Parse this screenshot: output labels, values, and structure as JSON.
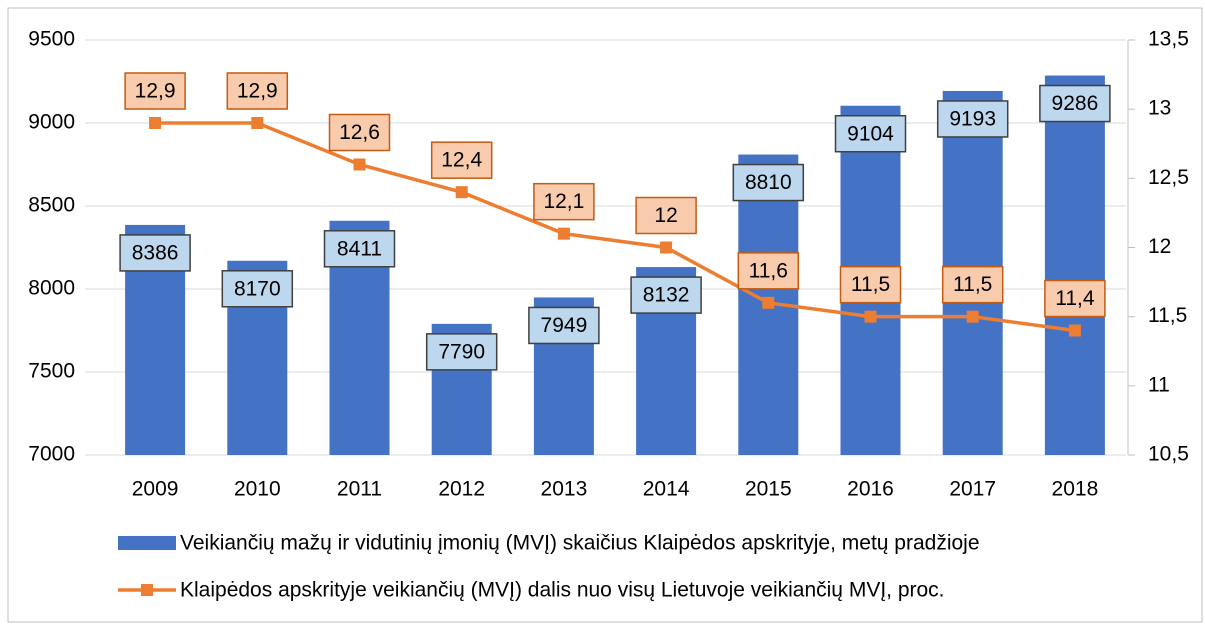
{
  "chart_data": {
    "type": "bar",
    "categories": [
      "2009",
      "2010",
      "2011",
      "2012",
      "2013",
      "2014",
      "2015",
      "2016",
      "2017",
      "2018"
    ],
    "series": [
      {
        "name": "Veikiančių mažų ir vidutinių įmonių (MVĮ) skaičius Klaipėdos apskrityje, metų pradžioje",
        "type": "bar",
        "color": "#4472c4",
        "values": [
          8386,
          8170,
          8411,
          7790,
          7949,
          8132,
          8810,
          9104,
          9193,
          9286
        ]
      },
      {
        "name": "Klaipėdos apskrityje veikiančių (MVĮ) dalis nuo visų Lietuvoje veikiančių MVĮ, proc.",
        "type": "line",
        "axis": "y2",
        "color": "#ed7d31",
        "values": [
          12.9,
          12.9,
          12.6,
          12.4,
          12.1,
          12,
          11.6,
          11.5,
          11.5,
          11.4
        ],
        "value_labels": [
          "12,9",
          "12,9",
          "12,6",
          "12,4",
          "12,1",
          "12",
          "11,6",
          "11,5",
          "11,5",
          "11,4"
        ]
      }
    ],
    "ylim": [
      7000,
      9500
    ],
    "yticks": [
      7000,
      7500,
      8000,
      8500,
      9000,
      9500
    ],
    "y2lim": [
      10.5,
      13.5
    ],
    "y2ticks": [
      {
        "value": 10.5,
        "label": "10,5"
      },
      11,
      {
        "value": 11.5,
        "label": "11,5"
      },
      12,
      {
        "value": 12.5,
        "label": "12,5"
      },
      13,
      {
        "value": 13.5,
        "label": "13,5"
      }
    ],
    "grid": true
  }
}
